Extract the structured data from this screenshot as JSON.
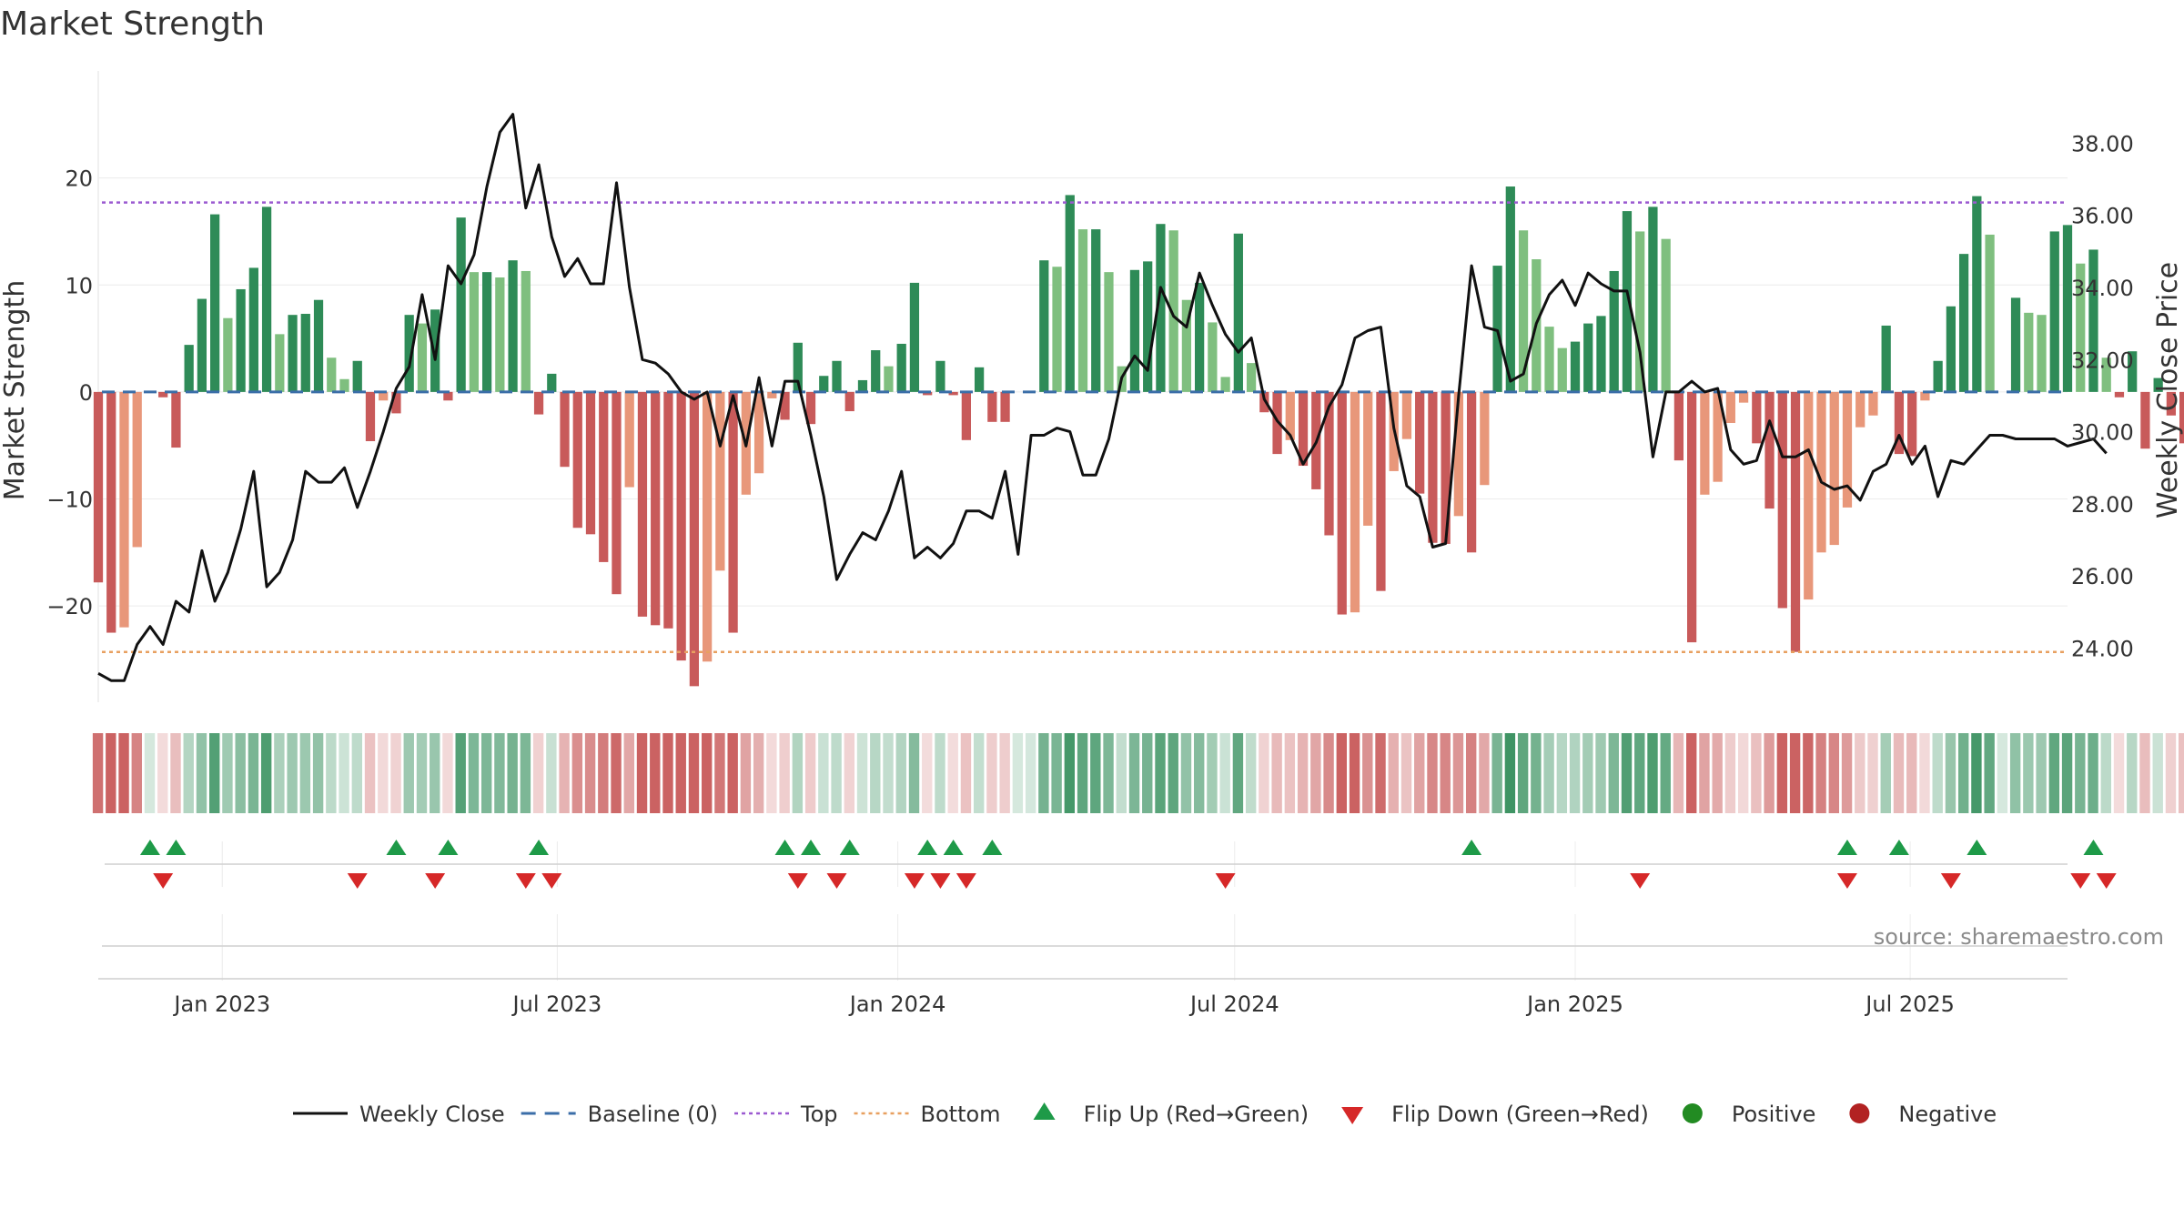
{
  "chart_data": {
    "type": "bar",
    "title": "Market Strength",
    "ylabel": "Market Strength",
    "y2label": "Weekly Close Price",
    "ylim": [
      -29,
      30
    ],
    "y2lim": [
      22.5,
      40.0
    ],
    "xlim": [
      "2022-10-26",
      "2025-09-24"
    ],
    "yticks": [
      20,
      10,
      0,
      -10,
      -20
    ],
    "ytick_labels": [
      "20",
      "10",
      "0",
      "−10",
      "−20"
    ],
    "y2ticks": [
      38,
      36,
      34,
      32,
      30,
      28,
      26,
      24
    ],
    "y2tick_labels": [
      "38.00",
      "36.00",
      "34.00",
      "32.00",
      "30.00",
      "28.00",
      "26.00",
      "24.00"
    ],
    "xticks": [
      "2023-01-01",
      "2023-07-01",
      "2024-01-01",
      "2024-07-01",
      "2025-01-01",
      "2025-07-01"
    ],
    "xtick_labels": [
      "Jan 2023",
      "Jul 2023",
      "Jan 2024",
      "Jul 2024",
      "Jan 2025",
      "Jul 2025"
    ],
    "top_threshold": 17.7,
    "bottom_threshold": -24.3,
    "grid": true,
    "legend_position": "bottom-center",
    "start_date": "2022-10-26",
    "strength": [
      -17.8,
      -22.5,
      -22.0,
      -14.5,
      0.0,
      -0.5,
      -5.2,
      4.4,
      8.7,
      16.6,
      6.9,
      9.6,
      11.6,
      17.3,
      5.4,
      7.2,
      7.3,
      8.6,
      3.2,
      1.2,
      2.9,
      -4.6,
      -0.8,
      -2.0,
      7.2,
      6.4,
      7.7,
      -0.8,
      16.3,
      11.2,
      11.2,
      10.7,
      12.3,
      11.3,
      -2.1,
      1.7,
      -7.0,
      -12.7,
      -13.3,
      -15.9,
      -18.9,
      -8.9,
      -21.0,
      -21.8,
      -22.1,
      -25.1,
      -27.5,
      -25.2,
      -16.7,
      -22.5,
      -9.6,
      -7.6,
      -0.6,
      -2.6,
      4.6,
      -3.0,
      1.5,
      2.9,
      -1.8,
      1.1,
      3.9,
      2.4,
      4.5,
      10.2,
      -0.3,
      2.9,
      -0.3,
      -4.5,
      2.3,
      -2.8,
      -2.8,
      0.0,
      0.1,
      12.3,
      11.7,
      18.4,
      15.2,
      15.2,
      11.2,
      2.4,
      11.4,
      12.2,
      15.7,
      15.1,
      8.6,
      10.2,
      6.5,
      1.4,
      14.8,
      2.7,
      -1.9,
      -5.8,
      -4.5,
      -6.9,
      -9.1,
      -13.4,
      -20.8,
      -20.6,
      -12.5,
      -18.6,
      -7.4,
      -4.4,
      -9.5,
      -14.1,
      -14.2,
      -11.6,
      -15.0,
      -8.7,
      11.8,
      19.2,
      15.1,
      12.4,
      6.1,
      4.1,
      4.7,
      6.4,
      7.1,
      11.3,
      16.9,
      15.0,
      17.3,
      14.3,
      -6.4,
      -23.4,
      -9.6,
      -8.4,
      -2.9,
      -1.0,
      -4.8,
      -10.9,
      -20.2,
      -24.3,
      -19.4,
      -15.0,
      -14.3,
      -10.8,
      -3.3,
      -2.2,
      6.2,
      -5.8,
      -6.0,
      -0.8,
      2.9,
      8.0,
      12.9,
      18.3,
      14.7,
      0.0,
      8.8,
      7.4,
      7.2,
      15.0,
      15.6,
      12.0,
      13.3,
      3.2,
      -0.5,
      3.8,
      -5.3,
      1.3,
      -2.2,
      -4.8
    ],
    "weekly_close": [
      23.3,
      23.1,
      23.1,
      24.1,
      24.6,
      24.1,
      25.3,
      25.0,
      26.7,
      25.3,
      26.1,
      27.3,
      28.9,
      25.7,
      26.1,
      27.0,
      28.9,
      28.6,
      28.6,
      29.0,
      27.9,
      28.9,
      30.0,
      31.2,
      31.8,
      33.8,
      32.0,
      34.6,
      34.1,
      34.9,
      36.8,
      38.3,
      38.8,
      36.2,
      37.4,
      35.4,
      34.3,
      34.8,
      34.1,
      34.1,
      36.9,
      34.0,
      32.0,
      31.9,
      31.6,
      31.1,
      30.9,
      31.1,
      29.6,
      31.0,
      29.6,
      31.5,
      29.6,
      31.4,
      31.4,
      29.9,
      28.2,
      25.9,
      26.6,
      27.2,
      27.0,
      27.8,
      28.9,
      26.5,
      26.8,
      26.5,
      26.9,
      27.8,
      27.8,
      27.6,
      28.9,
      26.6,
      29.9,
      29.9,
      30.1,
      30.0,
      28.8,
      28.8,
      29.8,
      31.5,
      32.1,
      31.7,
      34.0,
      33.2,
      32.9,
      34.4,
      33.5,
      32.7,
      32.2,
      32.6,
      30.9,
      30.3,
      29.9,
      29.1,
      29.7,
      30.7,
      31.3,
      32.6,
      32.8,
      32.9,
      30.1,
      28.5,
      28.2,
      26.8,
      26.9,
      31.0,
      34.6,
      32.9,
      32.8,
      31.4,
      31.6,
      33.0,
      33.8,
      34.2,
      33.5,
      34.4,
      34.1,
      33.9,
      33.9,
      32.2,
      29.3,
      31.1,
      31.1,
      31.4,
      31.1,
      31.2,
      29.5,
      29.1,
      29.2,
      30.3,
      29.3,
      29.3,
      29.5,
      28.6,
      28.4,
      28.5,
      28.1,
      28.9,
      29.1,
      29.9,
      29.1,
      29.6,
      28.2,
      29.2,
      29.1,
      29.5,
      29.9,
      29.9,
      29.8,
      29.8,
      29.8,
      29.8,
      29.6,
      29.7,
      29.8,
      29.4
    ],
    "flip_up_weeks": [
      4,
      6,
      23,
      27,
      34,
      53,
      55,
      58,
      64,
      66,
      69,
      106,
      135,
      139,
      145,
      154
    ],
    "flip_down_weeks": [
      5,
      20,
      26,
      33,
      35,
      54,
      57,
      63,
      65,
      67,
      87,
      119,
      135,
      143,
      153,
      155
    ]
  },
  "legend": [
    {
      "key": "weekly_close",
      "label": "Weekly Close",
      "marker": "line",
      "color": "#111111"
    },
    {
      "key": "baseline",
      "label": "Baseline (0)",
      "marker": "dash",
      "color": "#3b6ea8"
    },
    {
      "key": "top",
      "label": "Top",
      "marker": "dotted",
      "color": "#9b59d0"
    },
    {
      "key": "bottom",
      "label": "Bottom",
      "marker": "dotted",
      "color": "#e8a060"
    },
    {
      "key": "flip_up",
      "label": "Flip Up (Red→Green)",
      "marker": "triangle-up",
      "color": "#1e9a48"
    },
    {
      "key": "flip_down",
      "label": "Flip Down (Green→Red)",
      "marker": "triangle-down",
      "color": "#d62828"
    },
    {
      "key": "positive",
      "label": "Positive",
      "marker": "circle",
      "color": "#228b22"
    },
    {
      "key": "negative",
      "label": "Negative",
      "marker": "circle",
      "color": "#b22222"
    }
  ],
  "source": "source: sharemaestro.com",
  "colors": {
    "strong_green": "#2e8b57",
    "light_green": "#7fbf7f",
    "strong_red": "#c85a5a",
    "light_red": "#e8977a",
    "price_line": "#111111",
    "baseline": "#3b6ea8",
    "top_line": "#9b59d0",
    "bottom_line": "#e8a060"
  }
}
